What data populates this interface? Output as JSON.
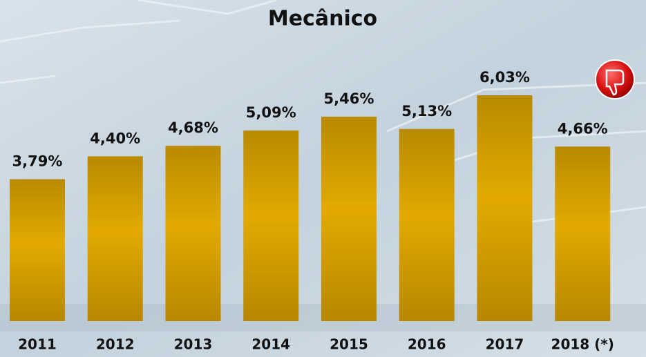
{
  "chart_data": {
    "type": "bar",
    "title": "Mecânico",
    "categories": [
      "2011",
      "2012",
      "2013",
      "2014",
      "2015",
      "2016",
      "2017",
      "2018 (*)"
    ],
    "values": [
      3.79,
      4.4,
      4.68,
      5.09,
      5.46,
      5.13,
      6.03,
      4.66
    ],
    "value_labels": [
      "3,79%",
      "4,40%",
      "4,68%",
      "5,09%",
      "5,46%",
      "5,13%",
      "6,03%",
      "4,66%"
    ],
    "color": "#d9a300"
  }
}
